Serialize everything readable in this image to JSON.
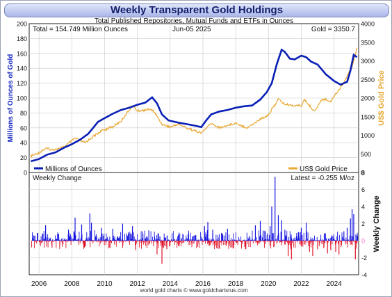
{
  "title": "Weekly Transparent Gold Holdings",
  "chart_data": [
    {
      "type": "line",
      "subtitle": "Total Published Repositories, Mutual Funds and ETFs in Ounces",
      "info_total": "Total = 154.749 Million Ounces",
      "info_date": "Jun-05  2025",
      "info_gold": "Gold = 3350.7",
      "ylabel": "Millions of Ounces of Gold",
      "y2label": "US$ Gold Price",
      "ylim": [
        0,
        200
      ],
      "y2lim": [
        0,
        4000
      ],
      "yticks": [
        "0",
        "20",
        "40",
        "60",
        "80",
        "100",
        "120",
        "140",
        "160",
        "180",
        "200"
      ],
      "y2ticks": [
        "0",
        "500",
        "1000",
        "1500",
        "2000",
        "2500",
        "3000",
        "3500",
        "4000"
      ],
      "xlim": [
        2005.4,
        2025.5
      ],
      "xticks": [
        "2006",
        "2008",
        "2010",
        "2012",
        "2014",
        "2016",
        "2018",
        "2020",
        "2022",
        "2024"
      ],
      "grid": true,
      "legend_position": "bottom",
      "series": [
        {
          "name": "Millions of Ounces",
          "color": "#0a1fb5",
          "axis": "left",
          "x": [
            2005.5,
            2006.0,
            2006.5,
            2007.0,
            2007.5,
            2008.0,
            2008.5,
            2009.0,
            2009.3,
            2009.6,
            2010.0,
            2010.5,
            2011.0,
            2011.5,
            2012.0,
            2012.5,
            2012.9,
            2013.2,
            2013.5,
            2013.9,
            2014.5,
            2015.0,
            2015.5,
            2015.9,
            2016.2,
            2016.5,
            2017.0,
            2017.5,
            2018.0,
            2018.5,
            2019.0,
            2019.5,
            2019.9,
            2020.2,
            2020.5,
            2020.8,
            2021.0,
            2021.3,
            2021.6,
            2022.0,
            2022.3,
            2022.6,
            2023.0,
            2023.5,
            2024.0,
            2024.4,
            2024.8,
            2025.0,
            2025.2,
            2025.4
          ],
          "values": [
            15,
            18,
            24,
            27,
            33,
            38,
            44,
            52,
            60,
            68,
            73,
            79,
            84,
            87,
            91,
            94,
            101,
            93,
            78,
            70,
            67,
            65,
            63,
            61,
            70,
            78,
            82,
            84,
            87,
            89,
            90,
            98,
            108,
            120,
            145,
            165,
            162,
            153,
            152,
            157,
            155,
            149,
            145,
            132,
            123,
            118,
            122,
            137,
            158,
            155
          ]
        },
        {
          "name": "US$ Gold Price",
          "color": "#e8a832",
          "axis": "right",
          "x": [
            2005.5,
            2006.0,
            2006.4,
            2006.8,
            2007.5,
            2008.2,
            2008.8,
            2009.2,
            2009.8,
            2010.5,
            2011.0,
            2011.7,
            2012.0,
            2012.7,
            2013.0,
            2013.5,
            2014.0,
            2014.5,
            2015.0,
            2015.9,
            2016.5,
            2017.0,
            2018.0,
            2018.7,
            2019.5,
            2020.0,
            2020.6,
            2021.0,
            2021.5,
            2022.0,
            2022.2,
            2022.8,
            2023.3,
            2023.8,
            2024.0,
            2024.5,
            2024.9,
            2025.1,
            2025.4
          ],
          "values": [
            440,
            530,
            650,
            610,
            680,
            920,
            800,
            930,
            1120,
            1230,
            1380,
            1800,
            1650,
            1700,
            1650,
            1300,
            1220,
            1300,
            1200,
            1060,
            1320,
            1200,
            1330,
            1200,
            1430,
            1550,
            1970,
            1830,
            1800,
            1800,
            1950,
            1650,
            1980,
            1920,
            2050,
            2350,
            2680,
            2850,
            3350
          ]
        }
      ]
    },
    {
      "type": "bar",
      "label": "Weekly Change",
      "latest": "Latest = -0.255 M/oz",
      "ylabel": "Weekly Change",
      "ylim": [
        -4,
        8
      ],
      "yticks": [
        "-4",
        "-2",
        "0",
        "2",
        "4",
        "6",
        "8"
      ],
      "zero_label": "0",
      "positive_color": "#1414e0",
      "negative_color": "#e0142a",
      "spikes": [
        {
          "x": 2005.9,
          "value": 0.9
        },
        {
          "x": 2006.4,
          "value": 1.8
        },
        {
          "x": 2007.2,
          "value": 0.8
        },
        {
          "x": 2007.8,
          "value": 1.3
        },
        {
          "x": 2008.2,
          "value": 2.7
        },
        {
          "x": 2008.6,
          "value": 1.9
        },
        {
          "x": 2008.8,
          "value": -0.7
        },
        {
          "x": 2009.1,
          "value": 3.2
        },
        {
          "x": 2009.2,
          "value": 2.1
        },
        {
          "x": 2009.8,
          "value": 1.5
        },
        {
          "x": 2010.5,
          "value": 1.4
        },
        {
          "x": 2011.1,
          "value": 2.0
        },
        {
          "x": 2011.7,
          "value": 1.7
        },
        {
          "x": 2011.9,
          "value": -1.1
        },
        {
          "x": 2012.7,
          "value": 1.2
        },
        {
          "x": 2013.2,
          "value": -1.6
        },
        {
          "x": 2013.5,
          "value": -2.7
        },
        {
          "x": 2013.8,
          "value": -1.0
        },
        {
          "x": 2014.5,
          "value": -0.6
        },
        {
          "x": 2015.1,
          "value": 0.8
        },
        {
          "x": 2016.1,
          "value": 1.7
        },
        {
          "x": 2016.3,
          "value": 2.2
        },
        {
          "x": 2016.6,
          "value": 1.3
        },
        {
          "x": 2017.5,
          "value": 1.4
        },
        {
          "x": 2017.7,
          "value": -0.8
        },
        {
          "x": 2018.6,
          "value": -1.0
        },
        {
          "x": 2019.2,
          "value": 1.8
        },
        {
          "x": 2019.5,
          "value": 2.3
        },
        {
          "x": 2019.8,
          "value": 1.1
        },
        {
          "x": 2020.1,
          "value": 1.7
        },
        {
          "x": 2020.2,
          "value": 4.0
        },
        {
          "x": 2020.4,
          "value": 7.5
        },
        {
          "x": 2020.6,
          "value": 3.0
        },
        {
          "x": 2020.8,
          "value": 2.4
        },
        {
          "x": 2021.0,
          "value": 1.3
        },
        {
          "x": 2021.2,
          "value": -1.8
        },
        {
          "x": 2021.4,
          "value": -2.2
        },
        {
          "x": 2022.0,
          "value": 1.5
        },
        {
          "x": 2022.3,
          "value": 2.1
        },
        {
          "x": 2022.5,
          "value": -1.3
        },
        {
          "x": 2022.7,
          "value": -1.8
        },
        {
          "x": 2023.0,
          "value": -1.0
        },
        {
          "x": 2023.4,
          "value": 0.8
        },
        {
          "x": 2023.6,
          "value": -1.5
        },
        {
          "x": 2023.8,
          "value": -1.1
        },
        {
          "x": 2024.1,
          "value": -1.3
        },
        {
          "x": 2024.3,
          "value": -1.6
        },
        {
          "x": 2024.6,
          "value": 1.1
        },
        {
          "x": 2024.8,
          "value": 1.5
        },
        {
          "x": 2025.0,
          "value": 2.6
        },
        {
          "x": 2025.1,
          "value": 3.7
        },
        {
          "x": 2025.2,
          "value": 3.1
        },
        {
          "x": 2025.3,
          "value": -2.2
        },
        {
          "x": 2025.4,
          "value": -0.3
        }
      ]
    }
  ],
  "credit": "world gold charts  ©  www.goldchartsrus.com"
}
